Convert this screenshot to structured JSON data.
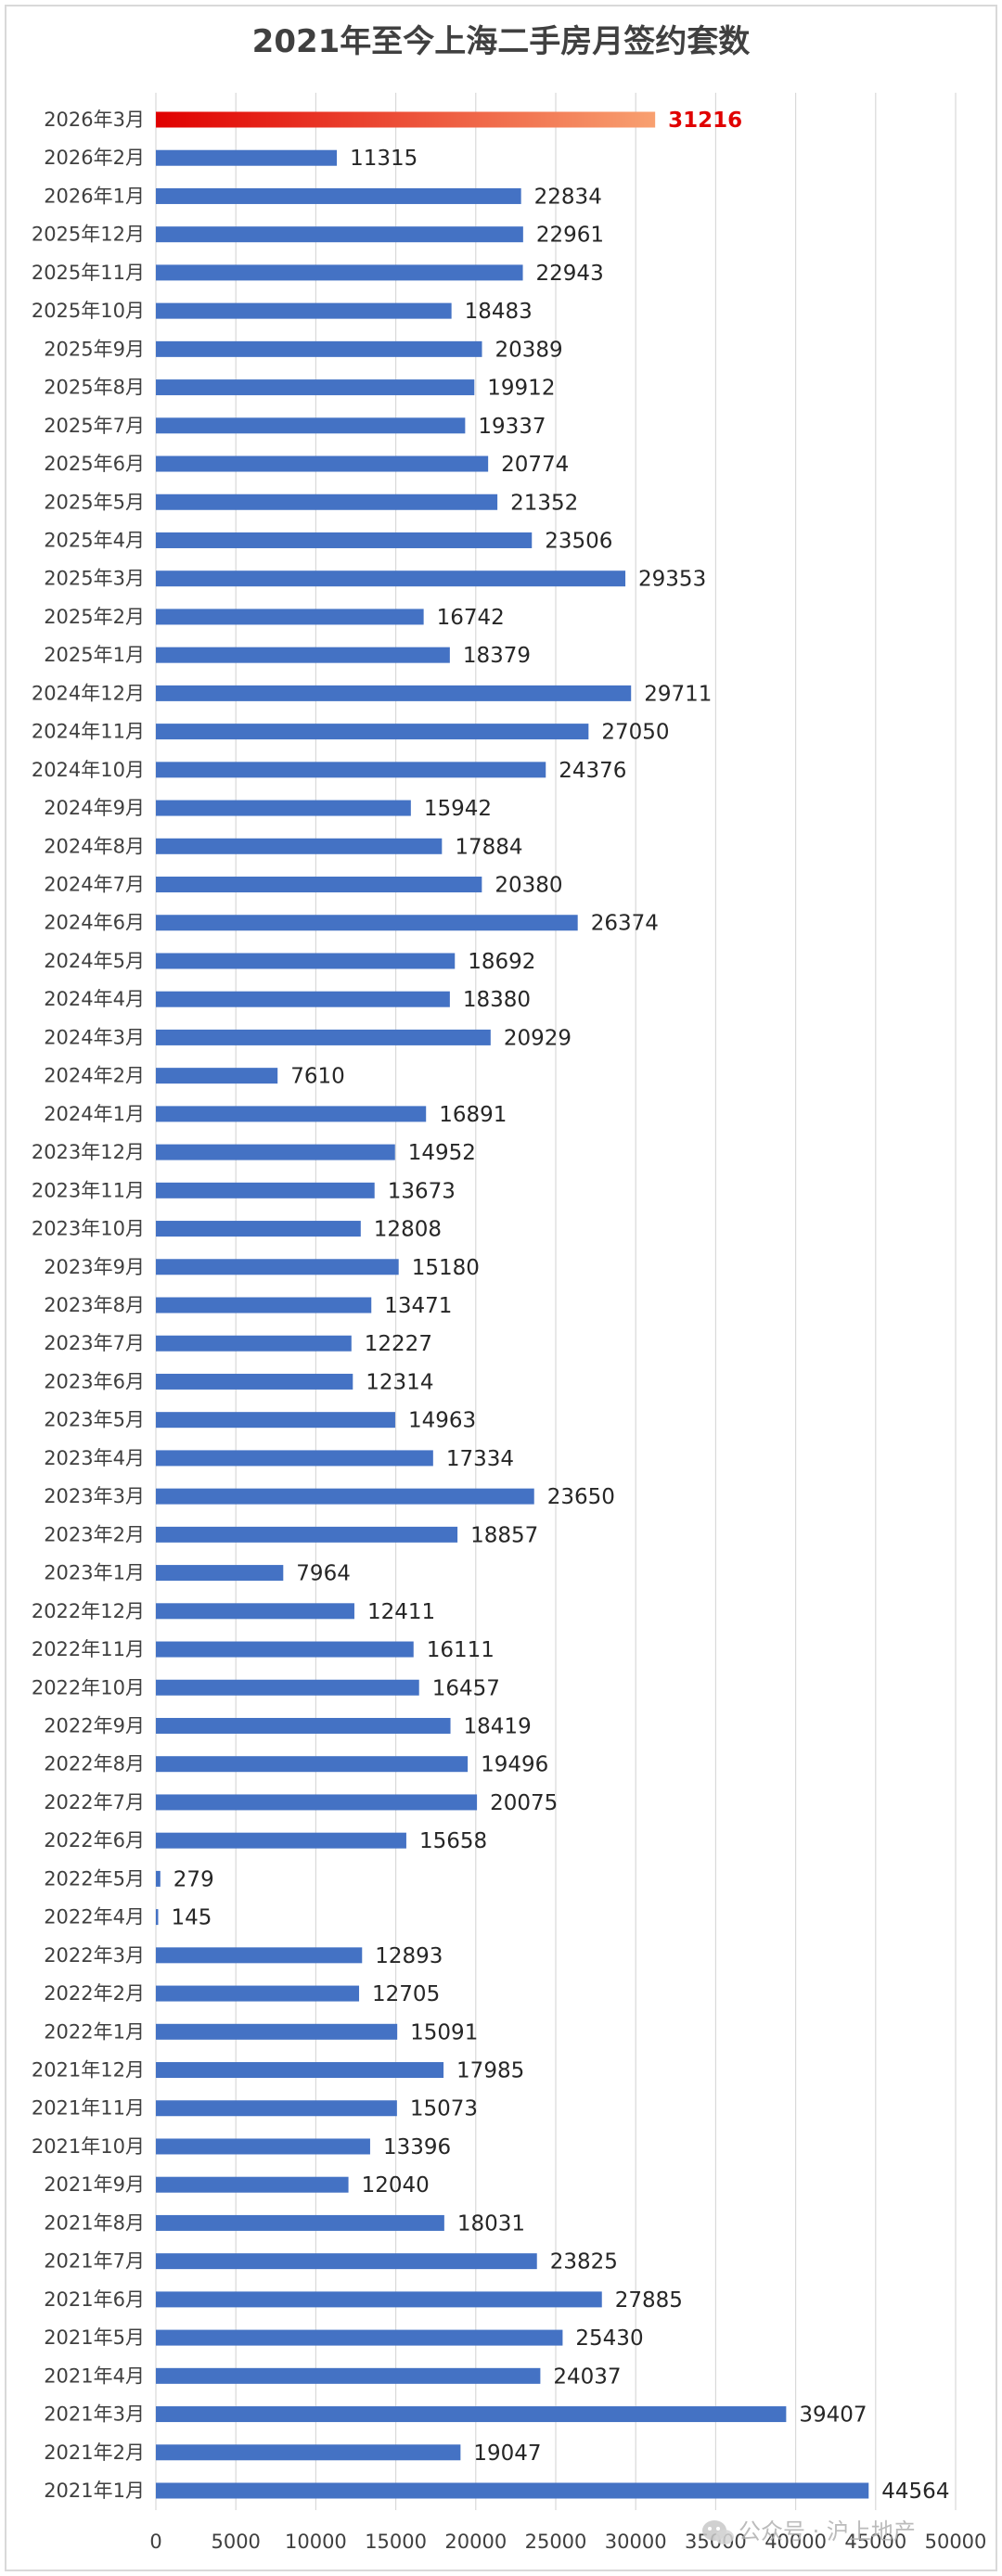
{
  "chart_data": {
    "type": "bar",
    "orientation": "horizontal",
    "title": "2021年至今上海二手房月签约套数",
    "xlim": [
      0,
      50000
    ],
    "x_ticks": [
      0,
      5000,
      10000,
      15000,
      20000,
      25000,
      30000,
      35000,
      40000,
      45000,
      50000
    ],
    "grid": true,
    "legend": "none",
    "bar_color": "#4472C4",
    "highlight": {
      "category": "2026年3月",
      "gradient_start": "#E00000",
      "gradient_end": "#F8A070",
      "label_color": "#E00000"
    },
    "categories": [
      "2026年3月",
      "2026年2月",
      "2026年1月",
      "2025年12月",
      "2025年11月",
      "2025年10月",
      "2025年9月",
      "2025年8月",
      "2025年7月",
      "2025年6月",
      "2025年5月",
      "2025年4月",
      "2025年3月",
      "2025年2月",
      "2025年1月",
      "2024年12月",
      "2024年11月",
      "2024年10月",
      "2024年9月",
      "2024年8月",
      "2024年7月",
      "2024年6月",
      "2024年5月",
      "2024年4月",
      "2024年3月",
      "2024年2月",
      "2024年1月",
      "2023年12月",
      "2023年11月",
      "2023年10月",
      "2023年9月",
      "2023年8月",
      "2023年7月",
      "2023年6月",
      "2023年5月",
      "2023年4月",
      "2023年3月",
      "2023年2月",
      "2023年1月",
      "2022年12月",
      "2022年11月",
      "2022年10月",
      "2022年9月",
      "2022年8月",
      "2022年7月",
      "2022年6月",
      "2022年5月",
      "2022年4月",
      "2022年3月",
      "2022年2月",
      "2022年1月",
      "2021年12月",
      "2021年11月",
      "2021年10月",
      "2021年9月",
      "2021年8月",
      "2021年7月",
      "2021年6月",
      "2021年5月",
      "2021年4月",
      "2021年3月",
      "2021年2月",
      "2021年1月"
    ],
    "values": [
      31216,
      11315,
      22834,
      22961,
      22943,
      18483,
      20389,
      19912,
      19337,
      20774,
      21352,
      23506,
      29353,
      16742,
      18379,
      29711,
      27050,
      24376,
      15942,
      17884,
      20380,
      26374,
      18692,
      18380,
      20929,
      7610,
      16891,
      14952,
      13673,
      12808,
      15180,
      13471,
      12227,
      12314,
      14963,
      17334,
      23650,
      18857,
      7964,
      12411,
      16111,
      16457,
      18419,
      19496,
      20075,
      15658,
      279,
      145,
      12893,
      12705,
      15091,
      17985,
      15073,
      13396,
      12040,
      18031,
      23825,
      27885,
      25430,
      24037,
      39407,
      19047,
      44564
    ]
  },
  "watermark": {
    "text": "公众号 · 沪上地产",
    "icon": "wechat-icon"
  }
}
